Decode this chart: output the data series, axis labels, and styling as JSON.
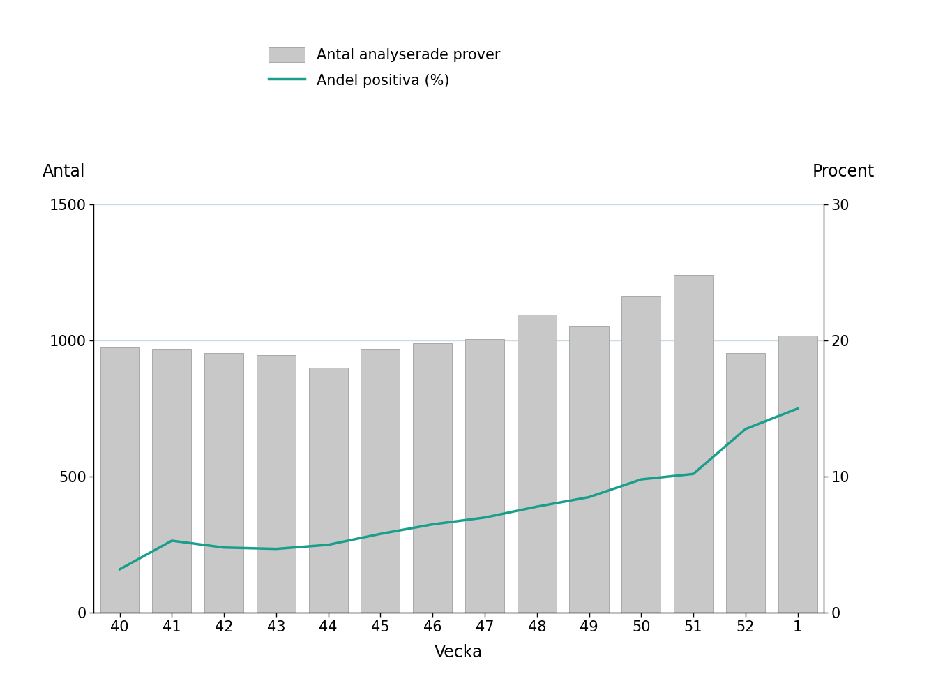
{
  "weeks": [
    "40",
    "41",
    "42",
    "43",
    "44",
    "45",
    "46",
    "47",
    "48",
    "49",
    "50",
    "51",
    "52",
    "1"
  ],
  "bar_values": [
    975,
    970,
    955,
    945,
    900,
    970,
    990,
    1005,
    1095,
    1055,
    1165,
    1240,
    955,
    1019
  ],
  "line_values_pct": [
    3.2,
    5.3,
    4.8,
    4.7,
    5.0,
    5.8,
    6.5,
    7.0,
    7.8,
    8.5,
    9.8,
    10.2,
    13.5,
    15.0
  ],
  "bar_color": "#c8c8c8",
  "bar_edgecolor": "#a0a0a0",
  "line_color": "#1a9e8c",
  "line_width": 2.5,
  "left_ylabel": "Antal",
  "right_ylabel": "Procent",
  "xlabel": "Vecka",
  "ylim_left": [
    0,
    1500
  ],
  "ylim_right": [
    0,
    30
  ],
  "yticks_left": [
    0,
    500,
    1000,
    1500
  ],
  "yticks_right": [
    0,
    10,
    20,
    30
  ],
  "gridline_color": "#c8dce8",
  "legend_bar_label": "Antal analyserade prover",
  "legend_line_label": "Andel positiva (%)",
  "background_color": "#ffffff",
  "axis_label_fontsize": 17,
  "tick_fontsize": 15,
  "legend_fontsize": 15
}
